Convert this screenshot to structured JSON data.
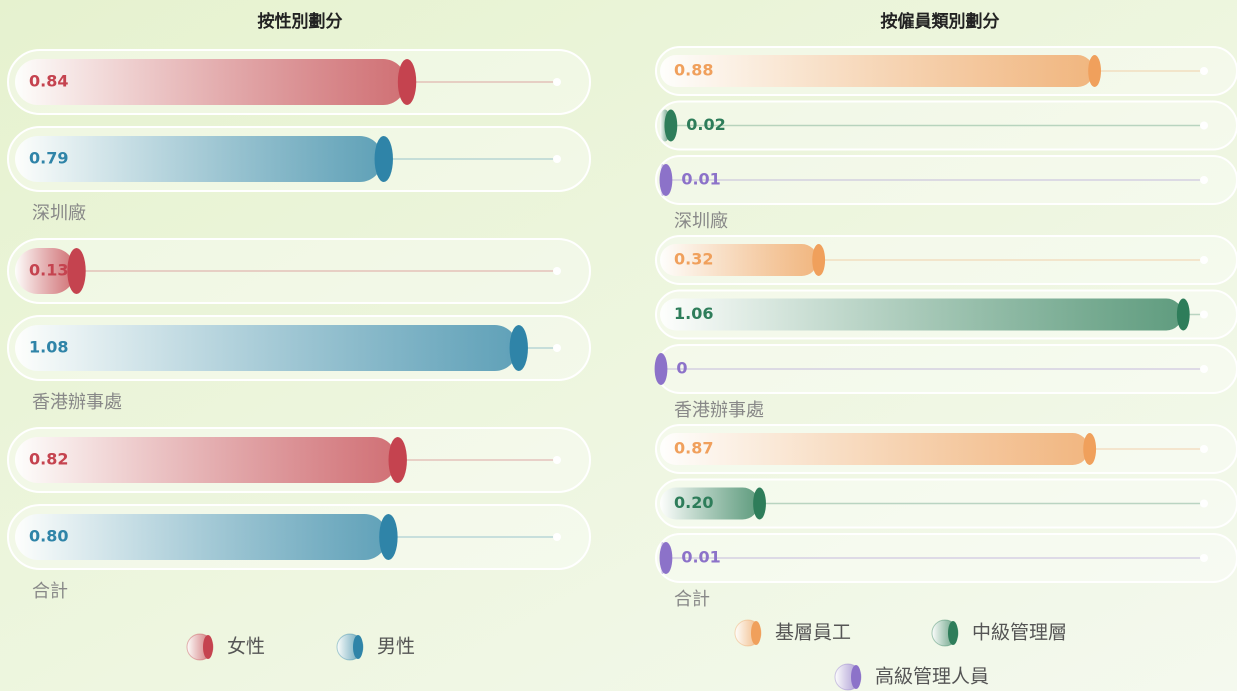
{
  "chart_data": [
    {
      "type": "bar",
      "title": "按性別劃分",
      "xlim": [
        0,
        1.16
      ],
      "categories": [
        "深圳廠",
        "香港辦事處",
        "合計"
      ],
      "series": [
        {
          "name": "女性",
          "color": "#c5434f",
          "values": [
            0.84,
            0.13,
            0.82
          ],
          "value_labels": [
            "0.84",
            "0.13",
            "0.82"
          ]
        },
        {
          "name": "男性",
          "color": "#2f84a8",
          "values": [
            0.79,
            1.08,
            0.8
          ],
          "value_labels": [
            "0.79",
            "1.08",
            "0.80"
          ]
        }
      ]
    },
    {
      "type": "bar",
      "title": "按僱員類別劃分",
      "xlim": [
        0,
        1.1
      ],
      "categories": [
        "深圳廠",
        "香港辦事處",
        "合計"
      ],
      "series": [
        {
          "name": "基層員工",
          "color": "#f0a05c",
          "values": [
            0.88,
            0.32,
            0.87
          ],
          "value_labels": [
            "0.88",
            "0.32",
            "0.87"
          ]
        },
        {
          "name": "中級管理層",
          "color": "#2e7d5a",
          "values": [
            0.02,
            1.06,
            0.2
          ],
          "value_labels": [
            "0.02",
            "1.06",
            "0.20"
          ]
        },
        {
          "name": "高級管理人員",
          "color": "#8c72c9",
          "values": [
            0.01,
            0,
            0.01
          ],
          "value_labels": [
            "0.01",
            "0",
            "0.01"
          ]
        }
      ]
    }
  ]
}
